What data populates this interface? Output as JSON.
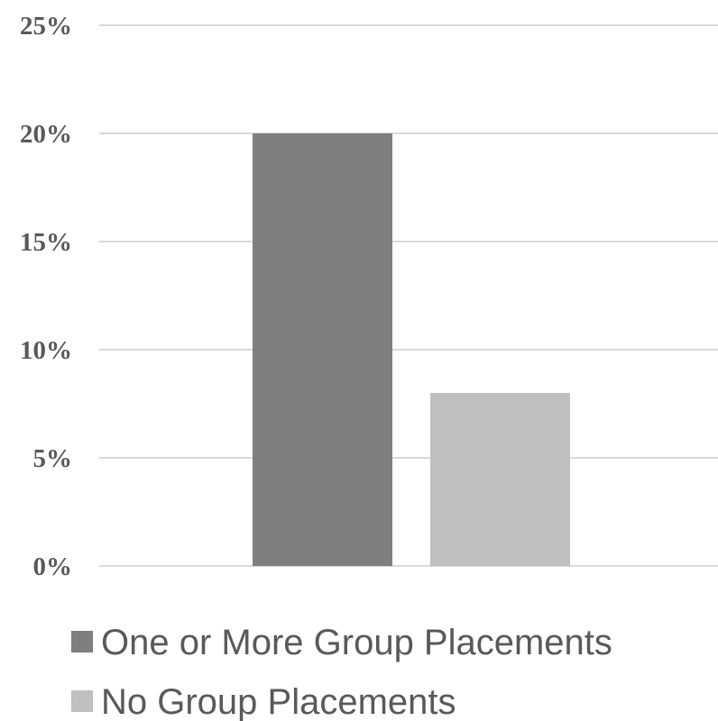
{
  "chart_data": {
    "type": "bar",
    "title": "",
    "xlabel": "",
    "ylabel": "",
    "ylim": [
      0,
      25
    ],
    "y_ticks": [
      "0%",
      "5%",
      "10%",
      "15%",
      "20%",
      "25%"
    ],
    "y_tick_values": [
      0,
      5,
      10,
      15,
      20,
      25
    ],
    "grid": true,
    "legend_position": "bottom",
    "series": [
      {
        "name": "One or More Group Placements",
        "values": [
          20
        ],
        "color": "#7f7f7f"
      },
      {
        "name": "No Group Placements",
        "values": [
          8
        ],
        "color": "#bfbfbf"
      }
    ]
  }
}
